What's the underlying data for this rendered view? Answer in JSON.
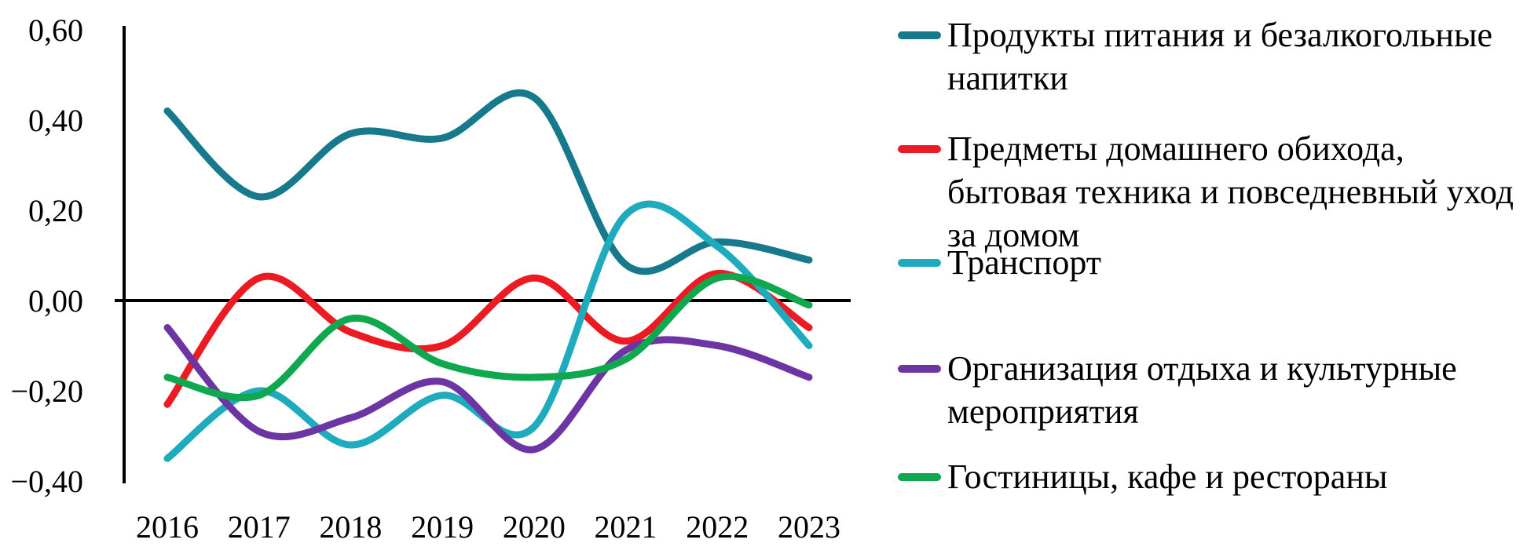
{
  "chart_data": {
    "type": "line",
    "title": "",
    "xlabel": "",
    "ylabel": "",
    "categories": [
      "2016",
      "2017",
      "2018",
      "2019",
      "2020",
      "2021",
      "2022",
      "2023"
    ],
    "series": [
      {
        "name": "Продукты питания и безалкогольные напитки",
        "color": "#17798C",
        "values": [
          0.42,
          0.23,
          0.37,
          0.36,
          0.45,
          0.08,
          0.13,
          0.09
        ]
      },
      {
        "name": "Предметы домашнего обихода, бытовая техника и повседневный уход за домом",
        "color": "#EC1B23",
        "values": [
          -0.23,
          0.05,
          -0.07,
          -0.1,
          0.05,
          -0.09,
          0.06,
          -0.06
        ]
      },
      {
        "name": "Транспорт",
        "color": "#1FABBE",
        "values": [
          -0.35,
          -0.2,
          -0.32,
          -0.21,
          -0.28,
          0.19,
          0.12,
          -0.1
        ]
      },
      {
        "name": "Организация отдыха и культурные мероприятия",
        "color": "#6C35A3",
        "values": [
          -0.06,
          -0.29,
          -0.26,
          -0.18,
          -0.33,
          -0.11,
          -0.1,
          -0.17
        ]
      },
      {
        "name": "Гостиницы, кафе и рестораны",
        "color": "#0FA84F",
        "values": [
          -0.17,
          -0.21,
          -0.04,
          -0.14,
          -0.17,
          -0.13,
          0.05,
          -0.01
        ]
      }
    ],
    "y_axis": {
      "min": -0.4,
      "max": 0.6,
      "ticks": [
        {
          "value": 0.6,
          "label": "0,60"
        },
        {
          "value": 0.4,
          "label": "0,40"
        },
        {
          "value": 0.2,
          "label": "0,20"
        },
        {
          "value": 0.0,
          "label": "0,00"
        },
        {
          "value": -0.2,
          "label": "−0,20"
        },
        {
          "value": -0.4,
          "label": "−0,40"
        }
      ]
    },
    "grid": "zero-line-only",
    "legend_position": "right",
    "axis_color": "#000000",
    "line_width": 9
  }
}
